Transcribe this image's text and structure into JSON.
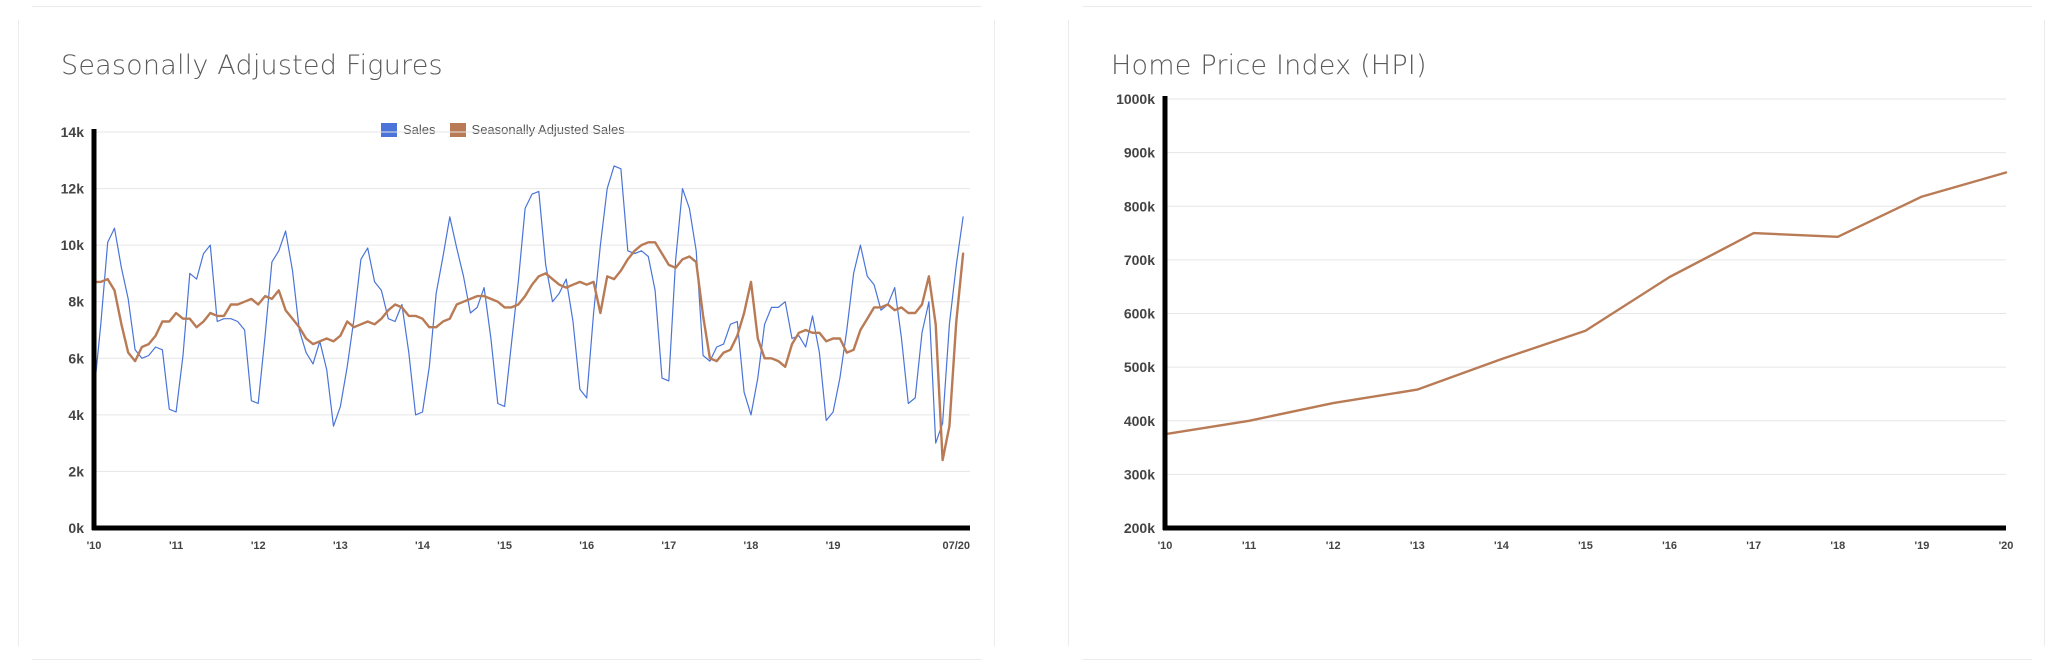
{
  "left_card": {
    "title": "Seasonally Adjusted Figures"
  },
  "right_card": {
    "title": "Home Price Index (HPI)"
  },
  "colors": {
    "sales": "#4a74d8",
    "adjusted": "#b97b55",
    "axis": "#000000",
    "grid": "#e6e6e6",
    "tick": "#444444"
  },
  "chart_data": [
    {
      "type": "line",
      "title": "Seasonally Adjusted Figures",
      "ylim": [
        0,
        14000
      ],
      "y_ticks": [
        {
          "value": 0,
          "label": "0k"
        },
        {
          "value": 2000,
          "label": "2k"
        },
        {
          "value": 4000,
          "label": "4k"
        },
        {
          "value": 6000,
          "label": "6k"
        },
        {
          "value": 8000,
          "label": "8k"
        },
        {
          "value": 10000,
          "label": "10k"
        },
        {
          "value": 12000,
          "label": "12k"
        },
        {
          "value": 14000,
          "label": "14k"
        }
      ],
      "x_ticks": [
        {
          "value": 2010.0,
          "label": "'10"
        },
        {
          "value": 2011.0,
          "label": "'11"
        },
        {
          "value": 2012.0,
          "label": "'12"
        },
        {
          "value": 2013.0,
          "label": "'13"
        },
        {
          "value": 2014.0,
          "label": "'14"
        },
        {
          "value": 2015.0,
          "label": "'15"
        },
        {
          "value": 2016.0,
          "label": "'16"
        },
        {
          "value": 2017.0,
          "label": "'17"
        },
        {
          "value": 2018.0,
          "label": "'18"
        },
        {
          "value": 2019.0,
          "label": "'19"
        },
        {
          "value": 2020.5,
          "label": "07/20"
        }
      ],
      "legend_position": "top-center",
      "grid": true,
      "x_start": 2010.0,
      "x_step": 0.08333,
      "series": [
        {
          "name": "Sales",
          "color": "#4a74d8",
          "values": [
            4800,
            7200,
            10100,
            10600,
            9200,
            8100,
            6300,
            6000,
            6100,
            6400,
            6300,
            4200,
            4100,
            6100,
            9000,
            8800,
            9700,
            10000,
            7300,
            7400,
            7400,
            7300,
            7000,
            4500,
            4400,
            6800,
            9400,
            9800,
            10500,
            9100,
            7000,
            6200,
            5800,
            6600,
            5600,
            3600,
            4300,
            5700,
            7400,
            9500,
            9900,
            8700,
            8400,
            7400,
            7300,
            7900,
            6200,
            4000,
            4100,
            5700,
            8300,
            9600,
            11000,
            9900,
            8900,
            7600,
            7800,
            8500,
            6700,
            4400,
            4300,
            6500,
            8700,
            11300,
            11800,
            11900,
            9300,
            8000,
            8300,
            8800,
            7300,
            4900,
            4600,
            7600,
            10000,
            12000,
            12800,
            12700,
            9800,
            9700,
            9800,
            9600,
            8400,
            5300,
            5200,
            9500,
            12000,
            11300,
            9800,
            6100,
            5900,
            6400,
            6500,
            7200,
            7300,
            4800,
            4000,
            5300,
            7200,
            7800,
            7800,
            8000,
            6700,
            6800,
            6400,
            7500,
            6200,
            3800,
            4100,
            5300,
            7000,
            9000,
            10000,
            8900,
            8600,
            7700,
            7900,
            8500,
            6700,
            4400,
            4600,
            6900,
            8000,
            3000,
            3700,
            7200,
            9300,
            11000
          ]
        },
        {
          "name": "Seasonally Adjusted Sales",
          "color": "#b97b55",
          "values": [
            8700,
            8700,
            8800,
            8400,
            7200,
            6200,
            5900,
            6400,
            6500,
            6800,
            7300,
            7300,
            7600,
            7400,
            7400,
            7100,
            7300,
            7600,
            7500,
            7500,
            7900,
            7900,
            8000,
            8100,
            7900,
            8200,
            8100,
            8400,
            7700,
            7400,
            7100,
            6700,
            6500,
            6600,
            6700,
            6600,
            6800,
            7300,
            7100,
            7200,
            7300,
            7200,
            7400,
            7700,
            7900,
            7800,
            7500,
            7500,
            7400,
            7100,
            7100,
            7300,
            7400,
            7900,
            8000,
            8100,
            8200,
            8200,
            8100,
            8000,
            7800,
            7800,
            7900,
            8200,
            8600,
            8900,
            9000,
            8800,
            8600,
            8500,
            8600,
            8700,
            8600,
            8700,
            7600,
            8900,
            8800,
            9100,
            9500,
            9800,
            10000,
            10100,
            10100,
            9700,
            9300,
            9200,
            9500,
            9600,
            9400,
            7500,
            6000,
            5900,
            6200,
            6300,
            6800,
            7600,
            8700,
            6700,
            6000,
            6000,
            5900,
            5700,
            6500,
            6900,
            7000,
            6900,
            6900,
            6600,
            6700,
            6700,
            6200,
            6300,
            7000,
            7400,
            7800,
            7800,
            7900,
            7700,
            7800,
            7600,
            7600,
            7900,
            8900,
            7200,
            2400,
            3600,
            7300,
            9700
          ]
        }
      ]
    },
    {
      "type": "line",
      "title": "Home Price Index (HPI)",
      "ylim": [
        200000,
        1000000
      ],
      "y_ticks": [
        {
          "value": 200000,
          "label": "200k"
        },
        {
          "value": 300000,
          "label": "300k"
        },
        {
          "value": 400000,
          "label": "400k"
        },
        {
          "value": 500000,
          "label": "500k"
        },
        {
          "value": 600000,
          "label": "600k"
        },
        {
          "value": 700000,
          "label": "700k"
        },
        {
          "value": 800000,
          "label": "800k"
        },
        {
          "value": 900000,
          "label": "900k"
        },
        {
          "value": 1000000,
          "label": "1000k"
        }
      ],
      "x_ticks": [
        {
          "value": 2010,
          "label": "'10"
        },
        {
          "value": 2011,
          "label": "'11"
        },
        {
          "value": 2012,
          "label": "'12"
        },
        {
          "value": 2013,
          "label": "'13"
        },
        {
          "value": 2014,
          "label": "'14"
        },
        {
          "value": 2015,
          "label": "'15"
        },
        {
          "value": 2016,
          "label": "'16"
        },
        {
          "value": 2017,
          "label": "'17"
        },
        {
          "value": 2018,
          "label": "'18"
        },
        {
          "value": 2019,
          "label": "'19"
        },
        {
          "value": 2020,
          "label": "'20"
        }
      ],
      "grid": true,
      "series": [
        {
          "color": "#b97b55",
          "x": [
            2010,
            2011,
            2012,
            2013,
            2014,
            2015,
            2016,
            2017,
            2018,
            2019,
            2020
          ],
          "values": [
            375000,
            400000,
            433000,
            458000,
            515000,
            568000,
            668000,
            750000,
            743000,
            818000,
            863000
          ]
        }
      ]
    }
  ]
}
